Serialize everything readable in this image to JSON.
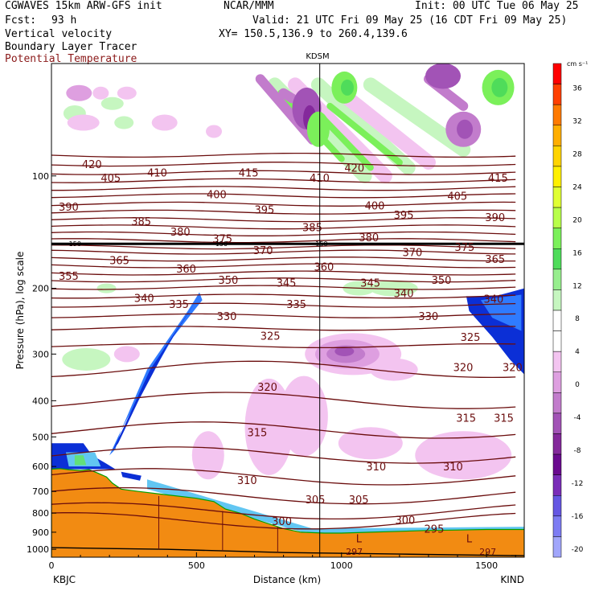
{
  "header": {
    "model": "CGWAVES 15km ARW-GFS init",
    "org": "NCAR/MMM",
    "init": "Init: 00 UTC Tue 06 May 25",
    "fcst_label": "Fcst:",
    "fcst_value": "93 h",
    "valid": "Valid: 21 UTC Fri 09 May 25 (16 CDT Fri 09 May 25)",
    "field1": "Vertical velocity",
    "field2": "Boundary Layer Tracer",
    "field3": "Potential Temperature",
    "xy": "XY= 150.5,136.9 to 260.4,139.6"
  },
  "colors": {
    "theta": "#6b0d0d",
    "terrain": "#f28b12",
    "tracer_dark": "#0b2fd6",
    "tracer_mid": "#2f7bff",
    "tracer_light": "#62c6f2"
  },
  "chart_data": {
    "type": "heatmap",
    "title": "KDSM",
    "xlabel": "Distance (km)",
    "ylabel": "Pressure (hPa), log scale",
    "xlim": [
      0,
      1630
    ],
    "ylim": [
      1050,
      50
    ],
    "y_scale": "log",
    "x_ticks": [
      "0",
      "500",
      "1000",
      "1500"
    ],
    "y_ticks": [
      "100",
      "200",
      "300",
      "400",
      "500",
      "600",
      "700",
      "800",
      "900",
      "1000"
    ],
    "endpoints": {
      "left": "KBJC",
      "right": "KIND"
    },
    "station_marker_km": 925,
    "colorbar": {
      "unit": "cm s⁻¹",
      "labels": [
        "36",
        "32",
        "28",
        "24",
        "20",
        "16",
        "12",
        "8",
        "4",
        "0",
        "-4",
        "-8",
        "-12",
        "-16",
        "-20"
      ],
      "colors": [
        "#ff0000",
        "#ff3f00",
        "#ff7a00",
        "#ffae00",
        "#ffd400",
        "#fff000",
        "#e0ff33",
        "#b8ff4a",
        "#7bf05a",
        "#4fdc5a",
        "#97ee8e",
        "#c6f6c0",
        "#ffffff",
        "#ffffff",
        "#f3c4f0",
        "#de9fe0",
        "#c27ccc",
        "#a253b6",
        "#84299b",
        "#6a0a8f",
        "#7a2db8",
        "#6557e3",
        "#7d7cf3",
        "#a1a6fb"
      ]
    },
    "theta_labels": [
      {
        "text": "420",
        "x": 105,
        "p": 93
      },
      {
        "text": "405",
        "x": 170,
        "p": 101
      },
      {
        "text": "410",
        "x": 330,
        "p": 98
      },
      {
        "text": "415",
        "x": 645,
        "p": 98
      },
      {
        "text": "410",
        "x": 890,
        "p": 101
      },
      {
        "text": "420",
        "x": 1010,
        "p": 95
      },
      {
        "text": "415",
        "x": 1505,
        "p": 101
      },
      {
        "text": "390",
        "x": 25,
        "p": 121
      },
      {
        "text": "400",
        "x": 535,
        "p": 112
      },
      {
        "text": "385",
        "x": 275,
        "p": 132
      },
      {
        "text": "395",
        "x": 700,
        "p": 123
      },
      {
        "text": "400",
        "x": 1080,
        "p": 120
      },
      {
        "text": "395",
        "x": 1180,
        "p": 127
      },
      {
        "text": "405",
        "x": 1365,
        "p": 113
      },
      {
        "text": "390",
        "x": 1495,
        "p": 129
      },
      {
        "text": "380",
        "x": 410,
        "p": 141
      },
      {
        "text": "375",
        "x": 555,
        "p": 147
      },
      {
        "text": "385",
        "x": 865,
        "p": 137
      },
      {
        "text": "380",
        "x": 1060,
        "p": 146
      },
      {
        "text": "375",
        "x": 1390,
        "p": 155
      },
      {
        "text": "370",
        "x": 695,
        "p": 158
      },
      {
        "text": "370",
        "x": 1210,
        "p": 160
      },
      {
        "text": "365",
        "x": 200,
        "p": 168
      },
      {
        "text": "360",
        "x": 430,
        "p": 177
      },
      {
        "text": "360",
        "x": 905,
        "p": 175
      },
      {
        "text": "365",
        "x": 1495,
        "p": 167
      },
      {
        "text": "355",
        "x": 25,
        "p": 185
      },
      {
        "text": "350",
        "x": 575,
        "p": 190
      },
      {
        "text": "345",
        "x": 775,
        "p": 193
      },
      {
        "text": "345",
        "x": 1065,
        "p": 193
      },
      {
        "text": "340",
        "x": 1180,
        "p": 206
      },
      {
        "text": "350",
        "x": 1310,
        "p": 190
      },
      {
        "text": "340",
        "x": 285,
        "p": 212
      },
      {
        "text": "335",
        "x": 405,
        "p": 220
      },
      {
        "text": "335",
        "x": 810,
        "p": 220
      },
      {
        "text": "340",
        "x": 1490,
        "p": 213
      },
      {
        "text": "330",
        "x": 570,
        "p": 237
      },
      {
        "text": "330",
        "x": 1265,
        "p": 237
      },
      {
        "text": "325",
        "x": 720,
        "p": 268
      },
      {
        "text": "325",
        "x": 1410,
        "p": 270
      },
      {
        "text": "320",
        "x": 710,
        "p": 367
      },
      {
        "text": "320",
        "x": 1385,
        "p": 325
      },
      {
        "text": "320",
        "x": 1555,
        "p": 325
      },
      {
        "text": "315",
        "x": 675,
        "p": 486
      },
      {
        "text": "315",
        "x": 1395,
        "p": 444
      },
      {
        "text": "315",
        "x": 1525,
        "p": 444
      },
      {
        "text": "310",
        "x": 640,
        "p": 652
      },
      {
        "text": "310",
        "x": 1085,
        "p": 600
      },
      {
        "text": "310",
        "x": 1350,
        "p": 600
      },
      {
        "text": "305",
        "x": 875,
        "p": 735
      },
      {
        "text": "305",
        "x": 1025,
        "p": 735
      },
      {
        "text": "300",
        "x": 760,
        "p": 840
      },
      {
        "text": "300",
        "x": 1185,
        "p": 833
      },
      {
        "text": "295",
        "x": 1285,
        "p": 880
      }
    ],
    "theta_150_labels": [
      {
        "text": "150",
        "x": 60,
        "p": 152
      },
      {
        "text": "150",
        "x": 565,
        "p": 152
      },
      {
        "text": "150",
        "x": 910,
        "p": 152
      }
    ],
    "low_markers": [
      {
        "text": "L",
        "x": 1050,
        "p": 935
      },
      {
        "text": "L",
        "x": 1430,
        "p": 935
      }
    ],
    "surface_labels": [
      {
        "text": "297",
        "x": 1015,
        "p": 1010
      },
      {
        "text": "297",
        "x": 1475,
        "p": 1010
      }
    ]
  }
}
